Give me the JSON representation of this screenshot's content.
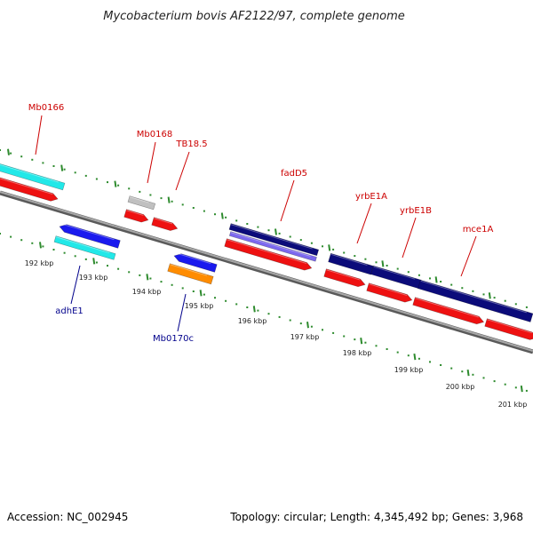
{
  "title": "Mycobacterium bovis AF2122/97, complete genome",
  "accession": "Accession: NC_002945",
  "summary": "Topology: circular; Length: 4,345,492 bp; Genes: 3,968",
  "colors": {
    "forward_gene_label": "#cc0000",
    "reverse_gene_label": "#00008b",
    "tick": "#2e8b2e",
    "backbone": "#808080",
    "cds": "#ee1111",
    "cyan_feature": "#22e8e8",
    "navy_feature": "#0b0b7a",
    "blue_feature": "#1a1aee",
    "gray_feature": "#c0c0c0",
    "orange_feature": "#ff8c00",
    "lavender_feature": "#7b68ee"
  },
  "scale_labels": [
    "192 kbp",
    "193 kbp",
    "194 kbp",
    "195 kbp",
    "196 kbp",
    "197 kbp",
    "198 kbp",
    "199 kbp",
    "200 kbp",
    "201 kbp"
  ],
  "gene_labels": [
    {
      "text": "Mb0166",
      "strand": "forward"
    },
    {
      "text": "Mb0168",
      "strand": "forward"
    },
    {
      "text": "TB18.5",
      "strand": "forward"
    },
    {
      "text": "fadD5",
      "strand": "forward"
    },
    {
      "text": "yrbE1A",
      "strand": "forward"
    },
    {
      "text": "yrbE1B",
      "strand": "forward"
    },
    {
      "text": "mce1A",
      "strand": "forward"
    },
    {
      "text": "adhE1",
      "strand": "reverse"
    },
    {
      "text": "Mb0170c",
      "strand": "reverse"
    }
  ]
}
